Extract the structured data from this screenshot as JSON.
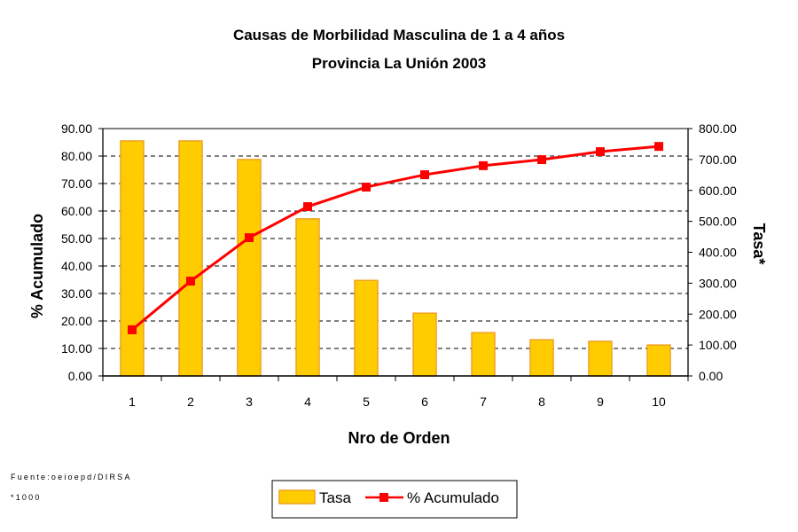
{
  "chart_data": {
    "type": "bar+line",
    "title": "Causas de Morbilidad Masculina de 1 a 4 años",
    "subtitle": "Provincia La Unión 2003",
    "xlabel": "Nro de Orden",
    "ylabel_left": "% Acumulado",
    "ylabel_right": "Tasa*",
    "categories": [
      "1",
      "2",
      "3",
      "4",
      "5",
      "6",
      "7",
      "8",
      "9",
      "10"
    ],
    "ylim_left": [
      0,
      90
    ],
    "ylim_right": [
      0,
      800
    ],
    "yticks_left": [
      "0.00",
      "10.00",
      "20.00",
      "30.00",
      "40.00",
      "50.00",
      "60.00",
      "70.00",
      "80.00",
      "90.00"
    ],
    "yticks_right": [
      "0.00",
      "100.00",
      "200.00",
      "300.00",
      "400.00",
      "500.00",
      "600.00",
      "700.00",
      "800.00"
    ],
    "grid": "horizontal dashed",
    "series": [
      {
        "name": "Tasa",
        "type": "bar",
        "axis": "right",
        "color": "#FFCC00",
        "edge_color": "#F0A020",
        "values": [
          760,
          760,
          700,
          508,
          309,
          203,
          140,
          117,
          112,
          100
        ]
      },
      {
        "name": "% Acumulado",
        "type": "line",
        "axis": "left",
        "color": "#FF0000",
        "marker": "square",
        "values": [
          16.8,
          34.5,
          50.3,
          61.6,
          68.7,
          73.2,
          76.5,
          78.7,
          81.6,
          83.5
        ]
      }
    ],
    "legend": {
      "position": "bottom-center",
      "entries": [
        "Tasa",
        "% Acumulado"
      ]
    },
    "footnotes": [
      "Fuente:oeioepd/DIRSA",
      "*1000"
    ]
  }
}
